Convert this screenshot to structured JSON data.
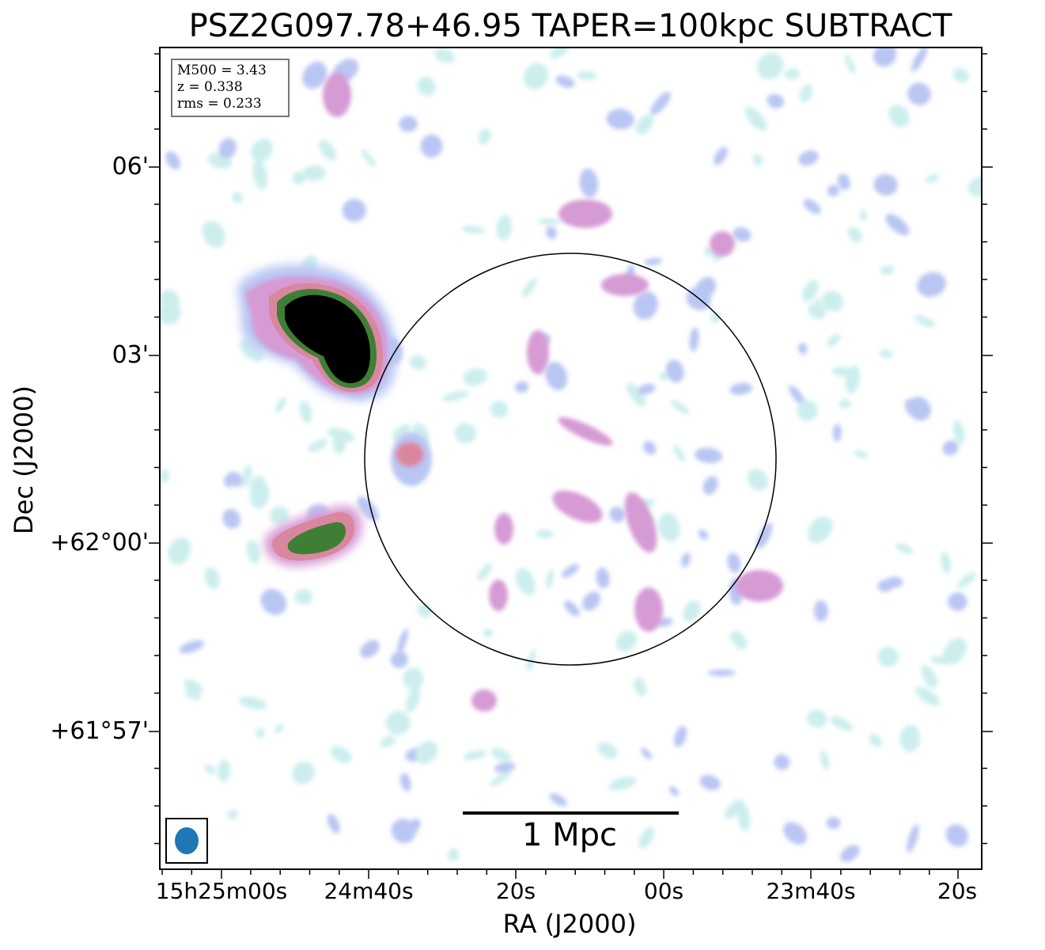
{
  "title": "PSZ2G097.78+46.95 TAPER=100kpc SUBTRACT",
  "info": {
    "mass_line": "M500 = 3.43",
    "redshift_line": "z = 0.338",
    "rms_line": "rms = 0.233"
  },
  "axes": {
    "x_title": "RA (J2000)",
    "y_title": "Dec (J2000)",
    "y_ticks": [
      "06'",
      "03'",
      "+62°00'",
      "+61°57'"
    ],
    "x_ticks": [
      "15h25m00s",
      "24m40s",
      "20s",
      "00s",
      "23m40s",
      "20s"
    ]
  },
  "scale_bar": {
    "label": "1 Mpc"
  },
  "colors": {
    "faint": "#cdeeee",
    "lavender": "#b9c6f3",
    "pink": "#d69ad4",
    "rose": "#d9879f",
    "green": "#3f7f35",
    "core": "#000000",
    "beam": "#1f77b4",
    "circle": "#000000"
  }
}
